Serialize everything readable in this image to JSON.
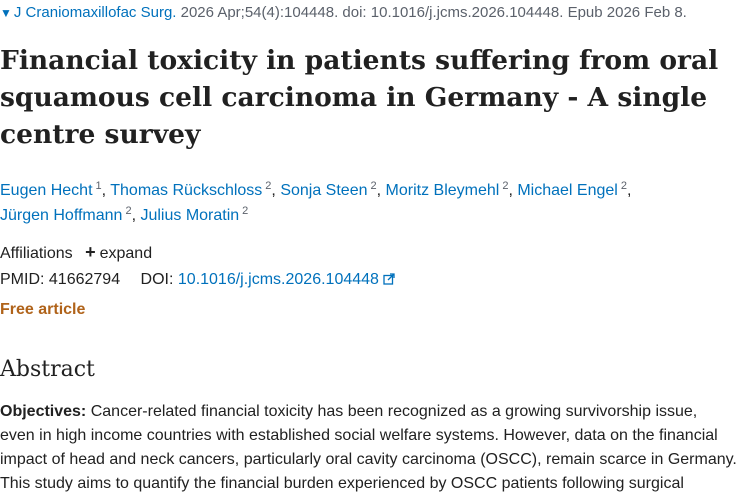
{
  "citation": {
    "journal": "J Craniomaxillofac Surg.",
    "details": "2026 Apr;54(4):104448. doi: 10.1016/j.jcms.2026.104448. Epub 2026 Feb 8."
  },
  "title_lines": [
    "Financial toxicity in patients suffering from oral",
    "squamous cell carcinoma in Germany - A single",
    "centre survey"
  ],
  "authors": [
    {
      "name": "Eugen Hecht",
      "aff": "1"
    },
    {
      "name": "Thomas Rückschloss",
      "aff": "2"
    },
    {
      "name": "Sonja Steen",
      "aff": "2"
    },
    {
      "name": "Moritz Bleymehl",
      "aff": "2"
    },
    {
      "name": "Michael Engel",
      "aff": "2"
    },
    {
      "name": "Jürgen Hoffmann",
      "aff": "2"
    },
    {
      "name": "Julius Moratin",
      "aff": "2"
    }
  ],
  "affiliations": {
    "label": "Affiliations",
    "expand_label": "expand",
    "expand_icon": "plus-icon"
  },
  "ids": {
    "pmid_label": "PMID:",
    "pmid": "41662794",
    "doi_label": "DOI:",
    "doi": "10.1016/j.jcms.2026.104448",
    "doi_icon": "external-link-icon"
  },
  "free_article": "Free article",
  "abstract": {
    "heading": "Abstract",
    "subtitle": "Objectives:",
    "lines": [
      "Cancer-related financial toxicity has been recognized as a growing survivorship issue,",
      "even in high income countries with established social welfare systems. However, data on the financial",
      "impact of head and neck cancers, particularly oral cavity carcinoma (OSCC), remain scarce in Germany.",
      "This study aims to quantify the financial burden experienced by OSCC patients following surgical"
    ]
  },
  "colors": {
    "link": "#0071bc",
    "free_article": "#b0631a",
    "text": "#212121",
    "muted": "#5b616b"
  }
}
